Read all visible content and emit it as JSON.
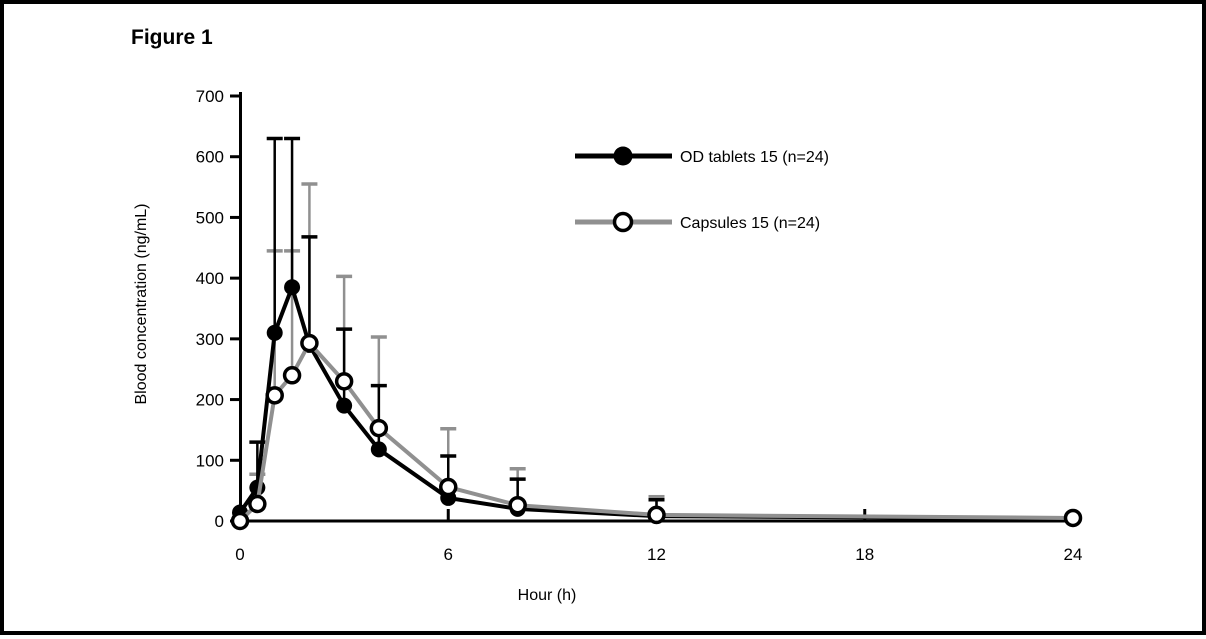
{
  "figure": {
    "title": "Figure 1"
  },
  "chart_data": {
    "type": "line",
    "title": "Figure 1",
    "xlabel": "Hour (h)",
    "ylabel": "Blood concentration (ng/mL)",
    "xlim": [
      0,
      24
    ],
    "ylim": [
      0,
      700
    ],
    "x_ticks": [
      0,
      6,
      12,
      18,
      24
    ],
    "y_ticks": [
      0,
      100,
      200,
      300,
      400,
      500,
      600,
      700
    ],
    "grid": false,
    "legend_position": "inside-upper-right",
    "error_bars": "upper-only",
    "x": [
      0,
      0.5,
      1,
      1.5,
      2,
      3,
      4,
      6,
      8,
      12,
      24
    ],
    "series": [
      {
        "name": "OD tablets 15 (n=24)",
        "marker": "filled-circle",
        "line_color": "#000000",
        "marker_fill": "#000000",
        "values": [
          14,
          55,
          310,
          385,
          290,
          190,
          118,
          38,
          20,
          8,
          4
        ],
        "error_upper": [
          0,
          75,
          320,
          245,
          178,
          126,
          105,
          69,
          49,
          27,
          0
        ]
      },
      {
        "name": "Capsules 15 (n=24)",
        "marker": "open-circle",
        "line_color": "#909090",
        "marker_fill": "#ffffff",
        "values": [
          0,
          28,
          207,
          240,
          293,
          230,
          153,
          56,
          26,
          10,
          5
        ],
        "error_upper": [
          0,
          49,
          238,
          205,
          262,
          173,
          150,
          96,
          60,
          30,
          0
        ]
      }
    ]
  }
}
